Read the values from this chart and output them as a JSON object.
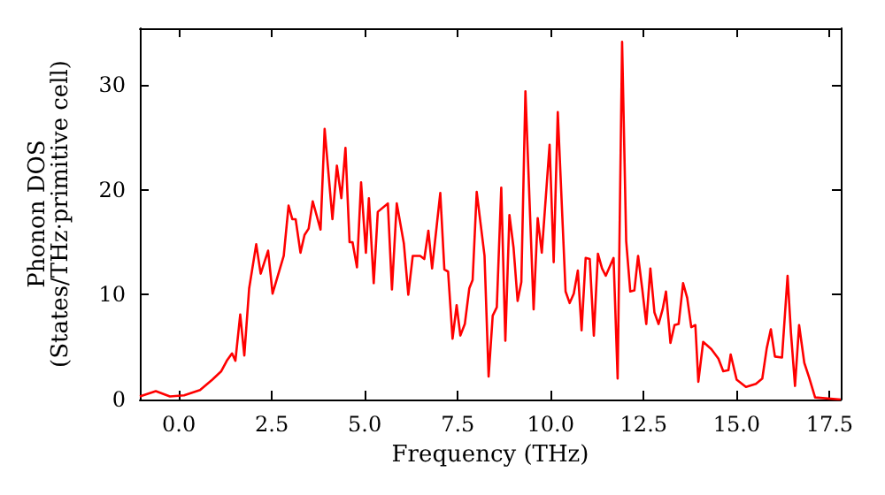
{
  "chart_data": {
    "type": "line",
    "xlabel": "Frequency (THz)",
    "ylabel": "Phonon DOS\n(States/THz·primitive cell)",
    "xlim": [
      -1.05,
      17.8
    ],
    "ylim": [
      0,
      35.4
    ],
    "xticks": [
      {
        "value": 0,
        "label": "0.0"
      },
      {
        "value": 2.5,
        "label": "2.5"
      },
      {
        "value": 5,
        "label": "5.0"
      },
      {
        "value": 7.5,
        "label": "7.5"
      },
      {
        "value": 10,
        "label": "10.0"
      },
      {
        "value": 12.5,
        "label": "12.5"
      },
      {
        "value": 15,
        "label": "15.0"
      },
      {
        "value": 17.5,
        "label": "17.5"
      }
    ],
    "yticks": [
      0,
      10,
      20,
      30
    ],
    "grid": false,
    "marker": "none",
    "line_style": "solid",
    "series": [
      {
        "color": "#ff0000",
        "x": [
          -1.05,
          -0.62,
          -0.24,
          0.14,
          0.57,
          0.9,
          1.14,
          1.29,
          1.43,
          1.52,
          1.65,
          1.76,
          1.89,
          2.08,
          2.2,
          2.4,
          2.52,
          2.82,
          2.95,
          3.05,
          3.14,
          3.27,
          3.38,
          3.49,
          3.6,
          3.81,
          3.92,
          4.13,
          4.25,
          4.37,
          4.48,
          4.59,
          4.67,
          4.79,
          4.9,
          5.03,
          5.11,
          5.24,
          5.35,
          5.62,
          5.73,
          5.86,
          6.05,
          6.17,
          6.29,
          6.49,
          6.6,
          6.71,
          6.81,
          7.03,
          7.14,
          7.24,
          7.36,
          7.47,
          7.57,
          7.69,
          7.81,
          7.9,
          8.01,
          8.22,
          8.33,
          8.44,
          8.55,
          8.67,
          8.78,
          8.89,
          9.0,
          9.11,
          9.21,
          9.32,
          9.54,
          9.65,
          9.76,
          9.97,
          10.08,
          10.19,
          10.4,
          10.51,
          10.62,
          10.73,
          10.83,
          10.94,
          11.05,
          11.16,
          11.27,
          11.38,
          11.48,
          11.69,
          11.8,
          11.92,
          12.03,
          12.14,
          12.25,
          12.35,
          12.46,
          12.57,
          12.68,
          12.79,
          12.9,
          13.01,
          13.1,
          13.22,
          13.33,
          13.44,
          13.56,
          13.67,
          13.78,
          13.89,
          13.97,
          14.1,
          14.32,
          14.51,
          14.64,
          14.78,
          14.84,
          15.0,
          15.25,
          15.52,
          15.69,
          15.81,
          15.92,
          16.03,
          16.22,
          16.37,
          16.46,
          16.57,
          16.68,
          16.82,
          16.95,
          17.11,
          17.8
        ],
        "values": [
          0.3,
          0.8,
          0.3,
          0.4,
          0.9,
          1.9,
          2.7,
          3.7,
          4.4,
          3.7,
          8.1,
          4.2,
          10.6,
          14.8,
          12,
          14.2,
          10.1,
          13.7,
          18.5,
          17.2,
          17.2,
          14,
          15.7,
          16.3,
          18.9,
          16.2,
          25.8,
          17.2,
          22.3,
          19.2,
          24,
          15,
          15,
          12.6,
          20.7,
          14,
          19.2,
          11.1,
          17.9,
          18.7,
          10.5,
          18.7,
          14.9,
          10,
          13.7,
          13.7,
          13.4,
          16.1,
          12.5,
          19.7,
          12.4,
          12.2,
          5.8,
          9,
          6.1,
          7.2,
          10.6,
          11.4,
          19.8,
          13.7,
          2.2,
          8,
          8.8,
          20.2,
          5.6,
          17.6,
          14.5,
          9.4,
          11.2,
          29.4,
          8.6,
          17.3,
          14,
          24.3,
          13.1,
          27.4,
          10.3,
          9.2,
          10.1,
          12.3,
          6.6,
          13.5,
          13.4,
          6.1,
          13.9,
          12.5,
          11.8,
          13.5,
          2,
          34.1,
          15.1,
          10.3,
          10.4,
          13.7,
          10.6,
          7.2,
          12.5,
          8.3,
          7.2,
          8.6,
          10.3,
          5.4,
          7.1,
          7.2,
          11.1,
          9.7,
          6.9,
          7.1,
          1.7,
          5.5,
          4.8,
          3.9,
          2.7,
          2.8,
          4.3,
          1.9,
          1.2,
          1.5,
          2,
          4.9,
          6.7,
          4.1,
          4,
          11.8,
          6.4,
          1.3,
          7.1,
          3.5,
          2.1,
          0.2,
          0
        ]
      }
    ]
  }
}
